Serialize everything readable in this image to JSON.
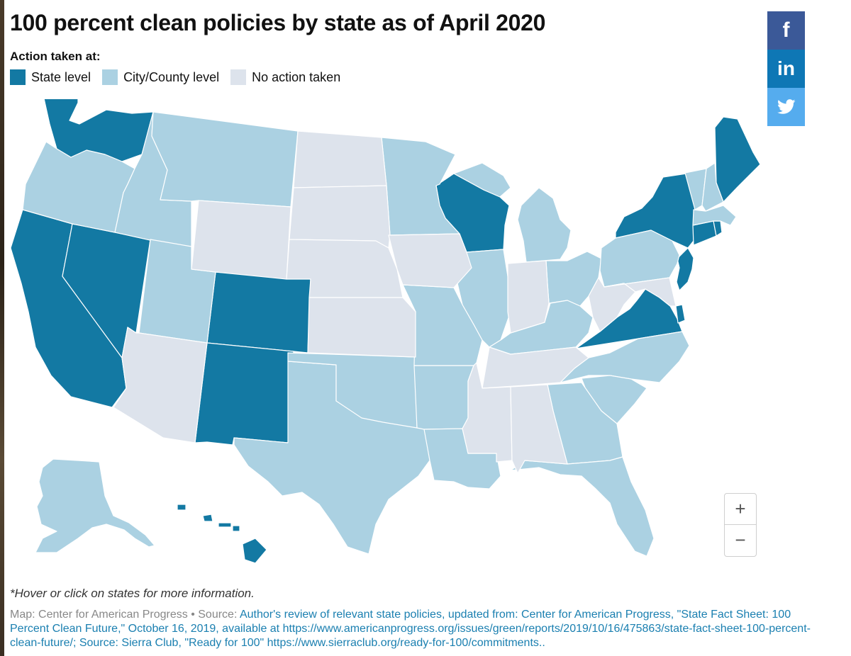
{
  "title": "100 percent clean policies by state as of April 2020",
  "legend": {
    "heading": "Action taken at:",
    "items": [
      {
        "label": "State level",
        "color": "#1379a3"
      },
      {
        "label": "City/County level",
        "color": "#abd1e2"
      },
      {
        "label": "No action taken",
        "color": "#dde3ec"
      }
    ]
  },
  "share": {
    "facebook": {
      "label": "f",
      "color": "#3b5998",
      "icon": "facebook-icon"
    },
    "linkedin": {
      "label": "in",
      "color": "#0e77b5",
      "icon": "linkedin-icon"
    },
    "twitter": {
      "color": "#55acee",
      "icon": "twitter-icon"
    }
  },
  "zoom": {
    "in": "+",
    "out": "−"
  },
  "footnote": "*Hover or click on states for more information.",
  "source": {
    "prefix": "Map: Center for American Progress • Source: ",
    "text": "Author's review of relevant state policies, updated from: Center for American Progress, \"State Fact Sheet: 100 Percent Clean Future,\" October 16, 2019, available at https://www.americanprogress.org/issues/green/reports/2019/10/16/475863/state-fact-sheet-100-percent-clean-future/; Source: Sierra Club, \"Ready for 100\" https://www.sierraclub.org/ready-for-100/commitments.."
  },
  "states": {
    "state_level": [
      "WA",
      "CA",
      "NV",
      "CO",
      "NM",
      "WI",
      "NY",
      "ME",
      "CT",
      "RI",
      "NJ",
      "VA",
      "DE",
      "HI"
    ],
    "city_county_level": [
      "OR",
      "ID",
      "MT",
      "UT",
      "TX",
      "OK",
      "AR",
      "LA",
      "MO",
      "MN",
      "IL",
      "MI",
      "OH",
      "KY",
      "PA",
      "NC",
      "SC",
      "GA",
      "FL",
      "VT",
      "NH",
      "MA",
      "AK"
    ],
    "no_action": [
      "WY",
      "ND",
      "SD",
      "NE",
      "KS",
      "IA",
      "IN",
      "WV",
      "MD",
      "TN",
      "MS",
      "AL",
      "AZ"
    ]
  }
}
